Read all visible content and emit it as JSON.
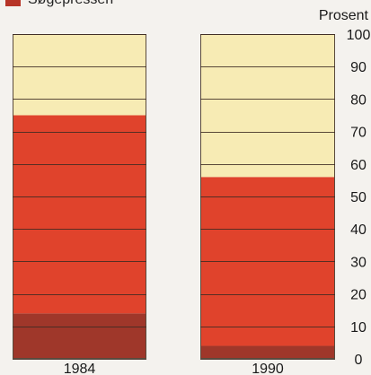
{
  "legend": {
    "label": "Søgepressen",
    "color": "#b73427"
  },
  "chart_data": {
    "type": "bar",
    "stacked": true,
    "categories": [
      "1984",
      "1990"
    ],
    "series": [
      {
        "color": "#9f372a",
        "values": [
          14,
          4
        ]
      },
      {
        "color": "#e0432c",
        "values": [
          61,
          52
        ]
      },
      {
        "color": "#f7ebb4",
        "values": [
          25,
          44
        ]
      }
    ],
    "ylabel": "Prosent",
    "ylim": [
      0,
      100
    ],
    "yticks": [
      0,
      10,
      20,
      30,
      40,
      50,
      60,
      70,
      80,
      90,
      100
    ],
    "grid": true
  }
}
